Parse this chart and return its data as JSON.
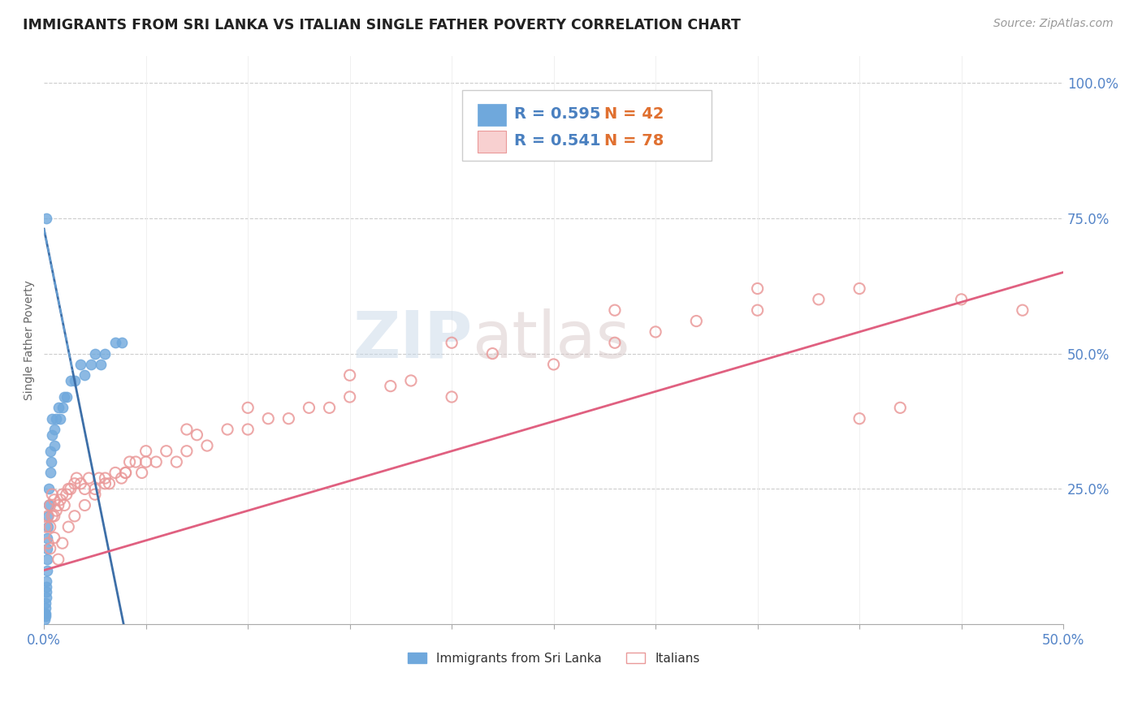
{
  "title": "IMMIGRANTS FROM SRI LANKA VS ITALIAN SINGLE FATHER POVERTY CORRELATION CHART",
  "source_text": "Source: ZipAtlas.com",
  "ylabel": "Single Father Poverty",
  "xlim": [
    0.0,
    0.5
  ],
  "ylim": [
    0.0,
    1.05
  ],
  "blue_color": "#6fa8dc",
  "pink_color": "#ea9999",
  "blue_line_color": "#3d6fa8",
  "pink_line_color": "#e06080",
  "blue_R": 0.595,
  "blue_N": 42,
  "pink_R": 0.541,
  "pink_N": 78,
  "watermark_zip": "ZIP",
  "watermark_atlas": "atlas",
  "legend_label_blue": "Immigrants from Sri Lanka",
  "legend_label_pink": "Italians",
  "background_color": "#ffffff",
  "sri_lanka_x": [
    0.0003,
    0.0005,
    0.0006,
    0.0007,
    0.0008,
    0.0009,
    0.001,
    0.0011,
    0.0012,
    0.0013,
    0.0014,
    0.0015,
    0.0016,
    0.0017,
    0.0018,
    0.002,
    0.0022,
    0.0025,
    0.003,
    0.003,
    0.0035,
    0.004,
    0.004,
    0.005,
    0.005,
    0.006,
    0.007,
    0.008,
    0.009,
    0.01,
    0.011,
    0.013,
    0.015,
    0.018,
    0.02,
    0.023,
    0.025,
    0.028,
    0.03,
    0.035,
    0.038,
    0.001
  ],
  "sri_lanka_y": [
    0.02,
    0.01,
    0.015,
    0.02,
    0.03,
    0.04,
    0.05,
    0.06,
    0.07,
    0.08,
    0.1,
    0.12,
    0.14,
    0.16,
    0.18,
    0.2,
    0.22,
    0.25,
    0.28,
    0.32,
    0.3,
    0.35,
    0.38,
    0.33,
    0.36,
    0.38,
    0.4,
    0.38,
    0.4,
    0.42,
    0.42,
    0.45,
    0.45,
    0.48,
    0.46,
    0.48,
    0.5,
    0.48,
    0.5,
    0.52,
    0.52,
    0.75
  ],
  "italians_x": [
    0.001,
    0.002,
    0.002,
    0.003,
    0.003,
    0.004,
    0.004,
    0.005,
    0.005,
    0.006,
    0.007,
    0.008,
    0.009,
    0.01,
    0.011,
    0.012,
    0.013,
    0.015,
    0.016,
    0.018,
    0.02,
    0.022,
    0.025,
    0.027,
    0.03,
    0.032,
    0.035,
    0.038,
    0.04,
    0.042,
    0.045,
    0.048,
    0.05,
    0.055,
    0.06,
    0.065,
    0.07,
    0.075,
    0.08,
    0.09,
    0.1,
    0.11,
    0.12,
    0.13,
    0.14,
    0.15,
    0.17,
    0.18,
    0.2,
    0.22,
    0.25,
    0.28,
    0.3,
    0.32,
    0.35,
    0.38,
    0.4,
    0.42,
    0.45,
    0.48,
    0.003,
    0.005,
    0.007,
    0.009,
    0.012,
    0.015,
    0.02,
    0.025,
    0.03,
    0.04,
    0.05,
    0.07,
    0.1,
    0.15,
    0.2,
    0.28,
    0.35,
    0.4
  ],
  "italians_y": [
    0.18,
    0.15,
    0.2,
    0.18,
    0.22,
    0.2,
    0.24,
    0.2,
    0.23,
    0.21,
    0.22,
    0.23,
    0.24,
    0.22,
    0.24,
    0.25,
    0.25,
    0.26,
    0.27,
    0.26,
    0.25,
    0.27,
    0.25,
    0.27,
    0.27,
    0.26,
    0.28,
    0.27,
    0.28,
    0.3,
    0.3,
    0.28,
    0.3,
    0.3,
    0.32,
    0.3,
    0.32,
    0.35,
    0.33,
    0.36,
    0.36,
    0.38,
    0.38,
    0.4,
    0.4,
    0.42,
    0.44,
    0.45,
    0.42,
    0.5,
    0.48,
    0.52,
    0.54,
    0.56,
    0.58,
    0.6,
    0.38,
    0.4,
    0.6,
    0.58,
    0.14,
    0.16,
    0.12,
    0.15,
    0.18,
    0.2,
    0.22,
    0.24,
    0.26,
    0.28,
    0.32,
    0.36,
    0.4,
    0.46,
    0.52,
    0.58,
    0.62,
    0.62
  ]
}
